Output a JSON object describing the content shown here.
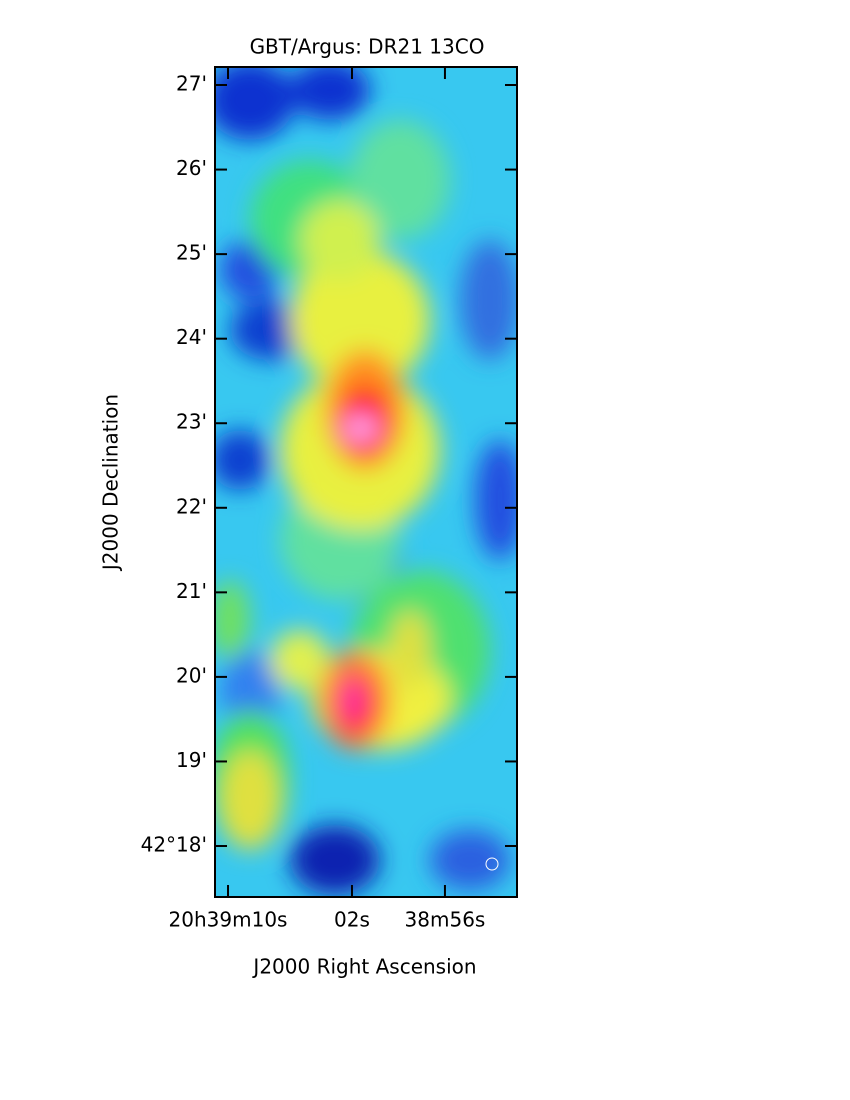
{
  "chart_data": {
    "type": "image",
    "title": "GBT/Argus:  DR21 13CO",
    "x_label": "J2000 Right Ascension",
    "y_label": "J2000 Declination",
    "xlim": [
      70.84,
      51.35
    ],
    "ylim": [
      17.397,
      27.213
    ],
    "xticks": [
      {
        "value": 70,
        "label": "20h39m10s"
      },
      {
        "value": 62,
        "label": "02s"
      },
      {
        "value": 56,
        "label": "38m56s"
      }
    ],
    "yticks": [
      {
        "value": 18,
        "label": "42°18'"
      },
      {
        "value": 19,
        "label": "19'"
      },
      {
        "value": 20,
        "label": "20'"
      },
      {
        "value": 21,
        "label": "21'"
      },
      {
        "value": 22,
        "label": "22'"
      },
      {
        "value": 23,
        "label": "23'"
      },
      {
        "value": 24,
        "label": "24'"
      },
      {
        "value": 25,
        "label": "25'"
      },
      {
        "value": 26,
        "label": "26'"
      },
      {
        "value": 27,
        "label": "27'"
      }
    ]
  }
}
